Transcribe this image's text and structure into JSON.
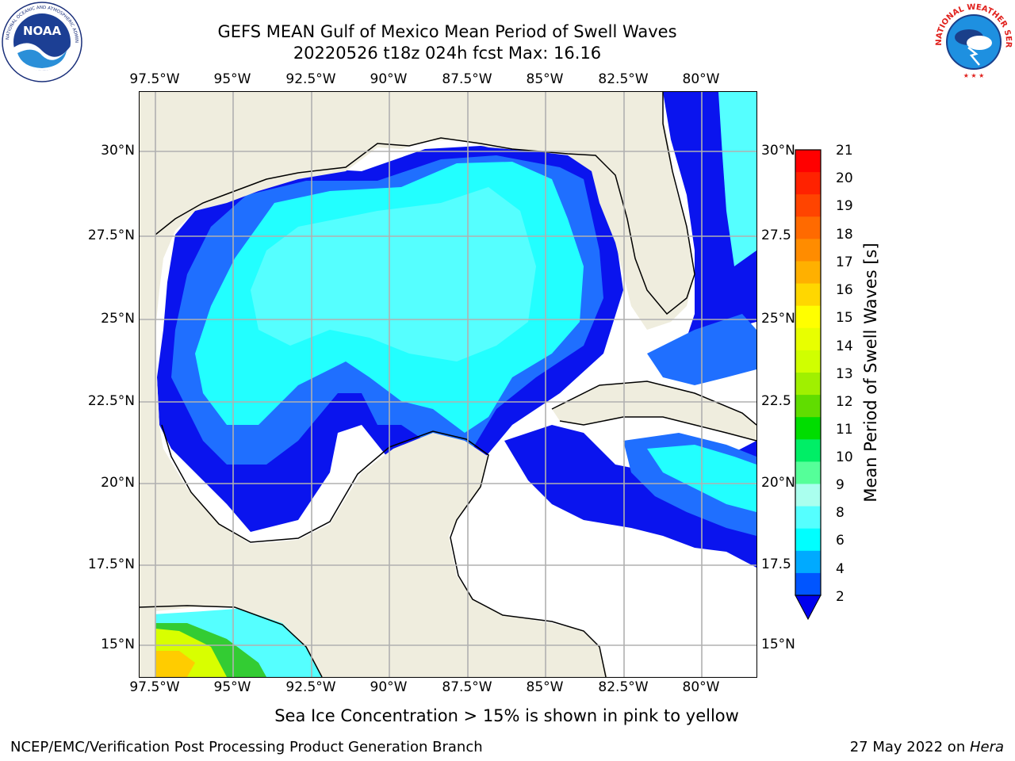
{
  "header": {
    "title_line1": "GEFS MEAN Gulf of Mexico Mean Period of Swell Waves",
    "title_line2": "20220526 t18z 024h fcst   Max: 16.16"
  },
  "logos": {
    "noaa_text": "NOAA",
    "noaa_ring_text": "NATIONAL OCEANIC AND ATMOSPHERIC ADMINISTRATION • U.S. DEPARTMENT OF COMMERCE",
    "nws_ring_text": "NATIONAL WEATHER SERVICE"
  },
  "map": {
    "lon_ticks": [
      "97.5°W",
      "95°W",
      "92.5°W",
      "90°W",
      "87.5°W",
      "85°W",
      "82.5°W",
      "80°W"
    ],
    "lat_ticks_left": [
      "30°N",
      "27.5°N",
      "25°N",
      "22.5°N",
      "20°N",
      "17.5°N",
      "15°N"
    ],
    "lat_ticks_right": [
      "30°N",
      "27.5",
      "25°N",
      "22.5",
      "20°N",
      "17.5",
      "15°N"
    ],
    "colors": {
      "land": "#efedde",
      "sea_mask": "#ffffff",
      "grid": "#b0b0b0"
    }
  },
  "colorbar": {
    "label": "Mean Period of Swell Waves [s]",
    "ticks": [
      "21",
      "20",
      "19",
      "18",
      "17",
      "16",
      "15",
      "14",
      "13",
      "12",
      "11",
      "10",
      "9",
      "8",
      "6",
      "4",
      "2"
    ],
    "colors_top_to_bottom": [
      "#ff0000",
      "#ff2200",
      "#ff4400",
      "#ff6a00",
      "#ff8c00",
      "#ffb000",
      "#ffd700",
      "#ffff00",
      "#e8ff00",
      "#d0ff00",
      "#a0f000",
      "#60dd00",
      "#00dd00",
      "#00ee66",
      "#55ff99",
      "#aaffee",
      "#55ffff",
      "#00ffff",
      "#00aaff",
      "#0055ff"
    ],
    "extend_color": "#0000ee"
  },
  "caption": "Sea Ice Concentration > 15% is shown in pink to yellow",
  "footer": {
    "left": "NCEP/EMC/Verification Post Processing Product Generation Branch",
    "right_prefix": "27 May 2022 on ",
    "right_machine": "Hera"
  }
}
